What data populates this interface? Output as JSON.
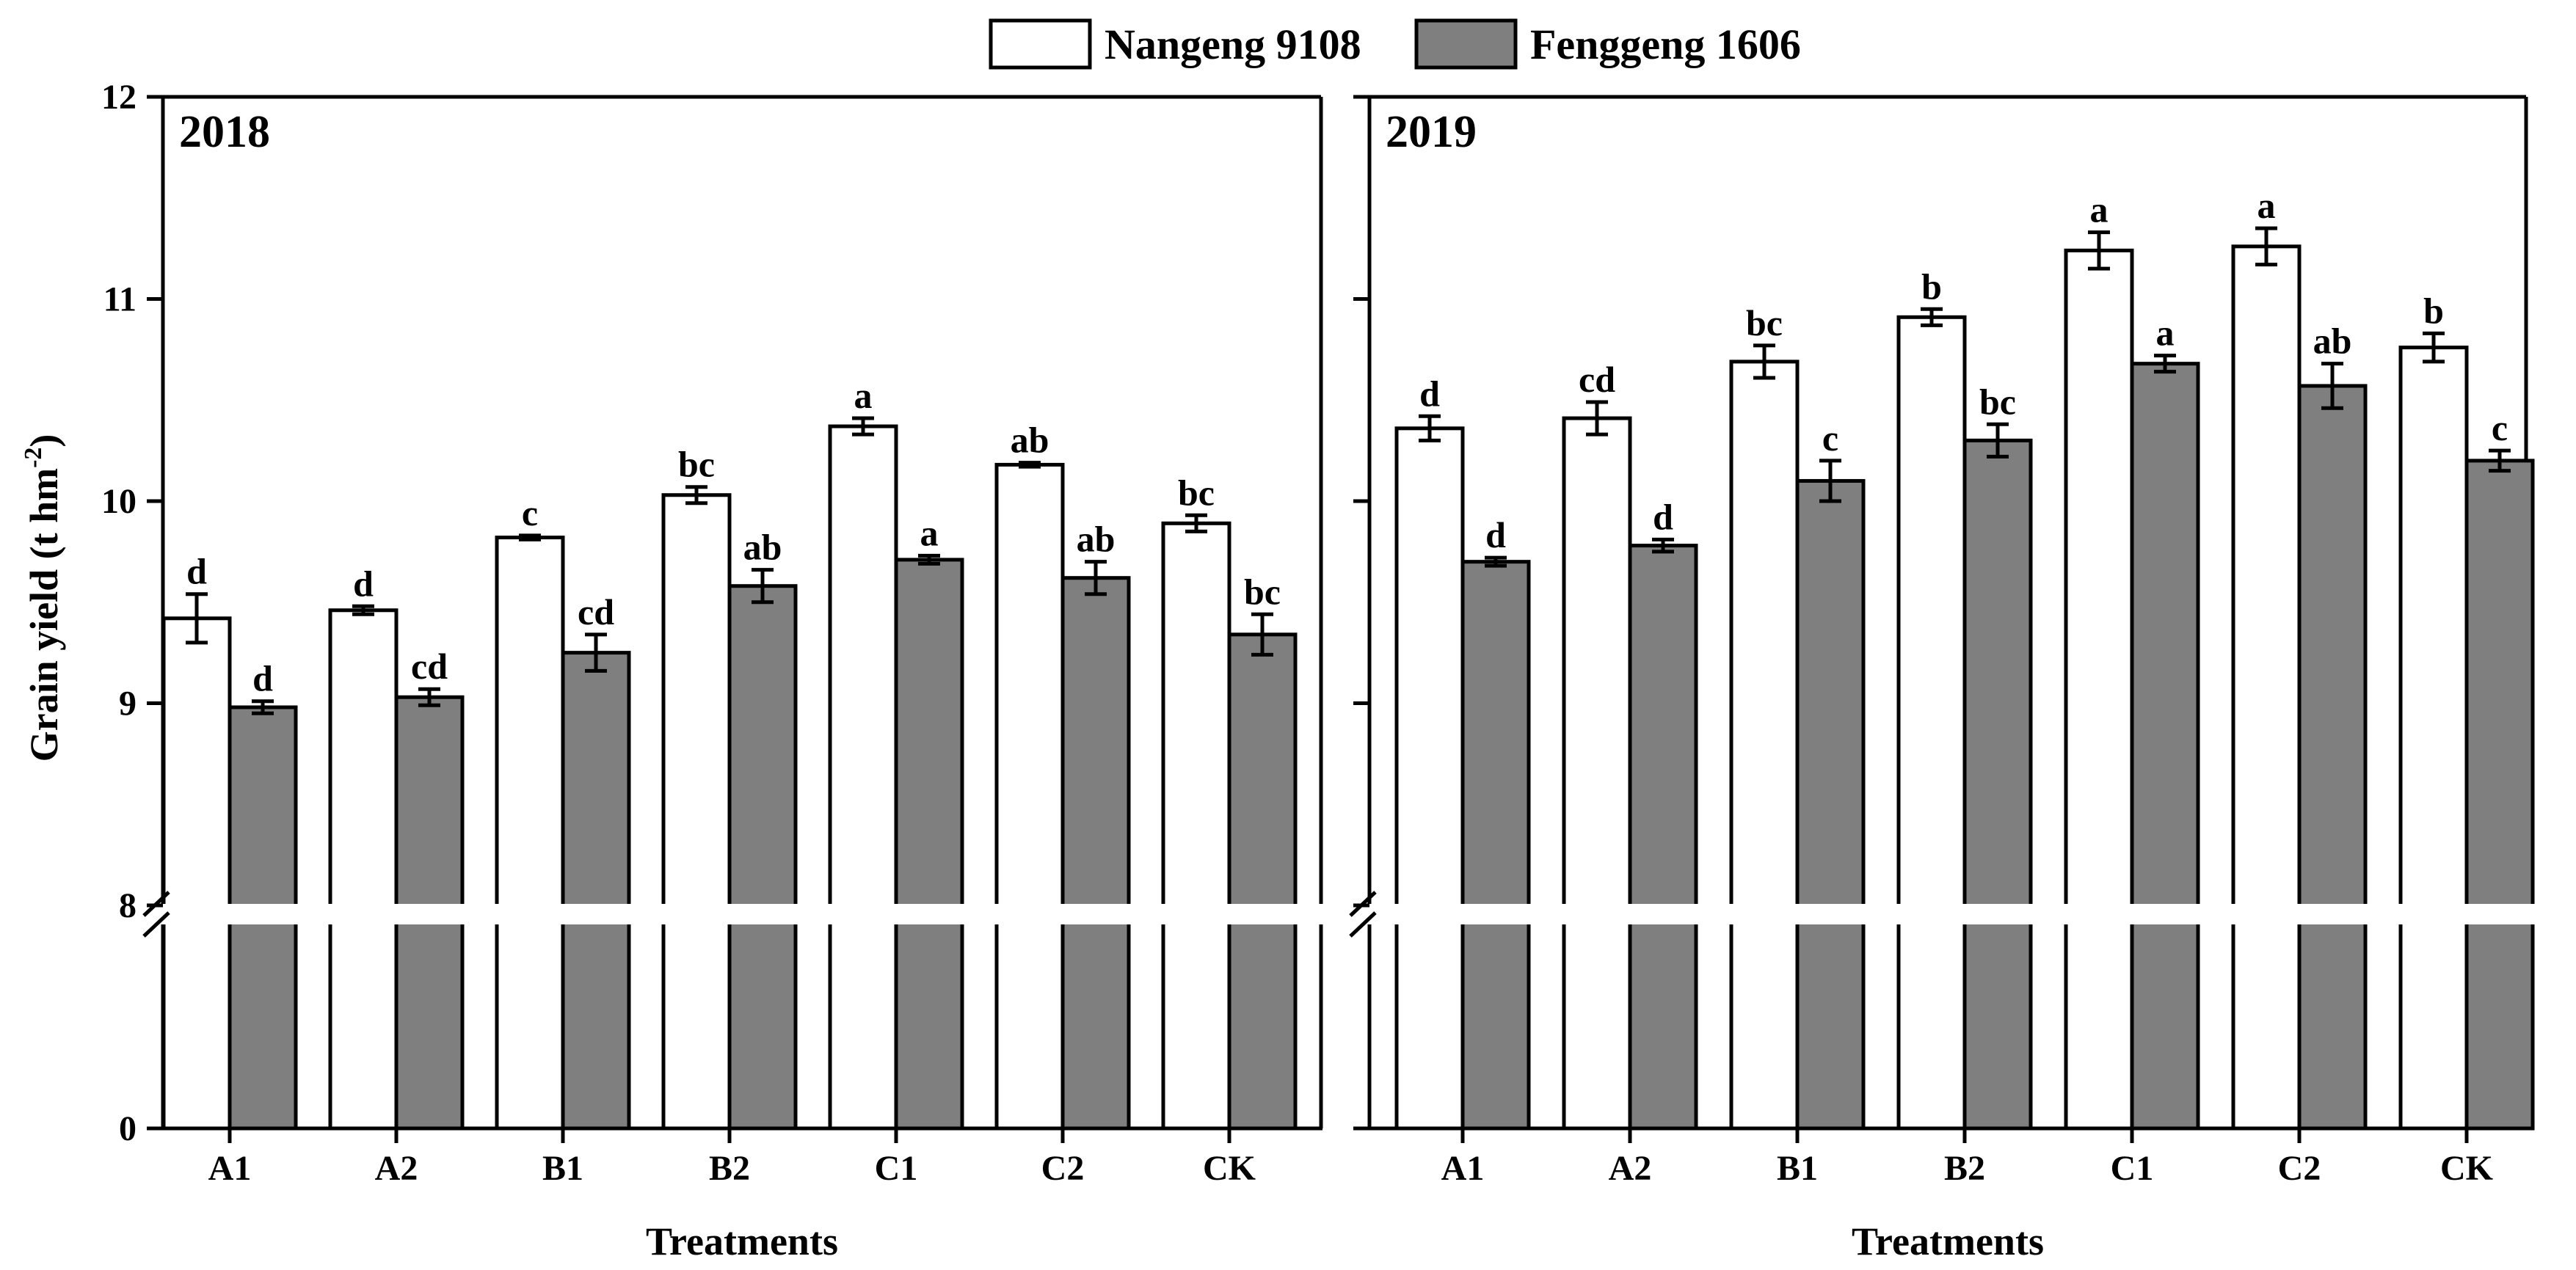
{
  "legend": [
    {
      "name": "Nangeng 9108",
      "color": "#ffffff"
    },
    {
      "name": "Fenggeng 1606",
      "color": "#7f7f7f"
    }
  ],
  "y_axis_label": "Grain yield (t hm-2)",
  "chart_data": [
    {
      "type": "bar",
      "title": "2018",
      "xlabel": "Treatments",
      "ylabel": "Grain yield (t hm-2)",
      "categories": [
        "A1",
        "A2",
        "B1",
        "B2",
        "C1",
        "C2",
        "CK"
      ],
      "y_ticks": [
        0,
        8,
        9,
        10,
        11,
        12
      ],
      "axis_break": [
        0,
        8
      ],
      "ylim": [
        8,
        12
      ],
      "series": [
        {
          "name": "Nangeng 9108",
          "values": [
            9.42,
            9.46,
            9.82,
            10.03,
            10.37,
            10.18,
            9.89
          ],
          "errors": [
            0.12,
            0.02,
            0.01,
            0.04,
            0.04,
            0.01,
            0.04
          ],
          "letters": [
            "d",
            "d",
            "c",
            "bc",
            "a",
            "ab",
            "bc"
          ]
        },
        {
          "name": "Fenggeng 1606",
          "values": [
            8.98,
            9.03,
            9.25,
            9.58,
            9.71,
            9.62,
            9.34
          ],
          "errors": [
            0.03,
            0.04,
            0.09,
            0.08,
            0.02,
            0.08,
            0.1
          ],
          "letters": [
            "d",
            "cd",
            "cd",
            "ab",
            "a",
            "ab",
            "bc"
          ]
        }
      ]
    },
    {
      "type": "bar",
      "title": "2019",
      "xlabel": "Treatments",
      "ylabel": "Grain yield (t hm-2)",
      "categories": [
        "A1",
        "A2",
        "B1",
        "B2",
        "C1",
        "C2",
        "CK"
      ],
      "y_ticks": [
        0,
        8,
        9,
        10,
        11,
        12
      ],
      "axis_break": [
        0,
        8
      ],
      "ylim": [
        8,
        12
      ],
      "series": [
        {
          "name": "Nangeng 9108",
          "values": [
            10.36,
            10.41,
            10.69,
            10.91,
            11.24,
            11.26,
            10.76
          ],
          "errors": [
            0.06,
            0.08,
            0.08,
            0.04,
            0.09,
            0.09,
            0.07
          ],
          "letters": [
            "d",
            "cd",
            "bc",
            "b",
            "a",
            "a",
            "b"
          ]
        },
        {
          "name": "Fenggeng 1606",
          "values": [
            9.7,
            9.78,
            10.1,
            10.3,
            10.68,
            10.57,
            10.2
          ],
          "errors": [
            0.02,
            0.03,
            0.1,
            0.08,
            0.04,
            0.11,
            0.05
          ],
          "letters": [
            "d",
            "d",
            "c",
            "bc",
            "a",
            "ab",
            "c"
          ]
        }
      ]
    }
  ]
}
